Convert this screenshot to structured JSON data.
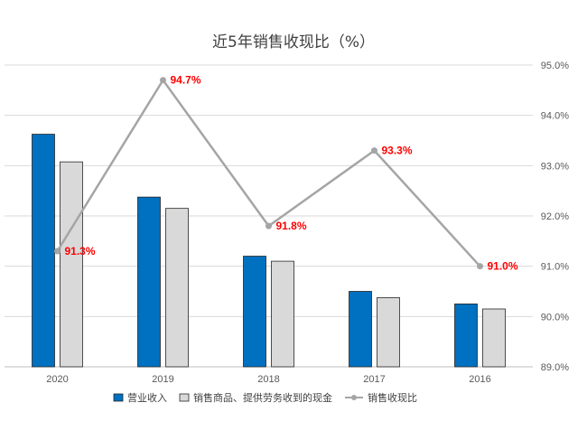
{
  "chart_data": {
    "type": "bar",
    "title": "近5年销售收现比（%）",
    "categories": [
      "2020",
      "2019",
      "2018",
      "2017",
      "2016"
    ],
    "series": [
      {
        "name": "营业收入",
        "kind": "bar",
        "axis": "left",
        "color": "#0070C0",
        "values": [
          18.5,
          13.5,
          8.8,
          6.0,
          5.0
        ]
      },
      {
        "name": "销售商品、提供劳务收到的现金",
        "kind": "bar",
        "axis": "left",
        "color": "#D9D9D9",
        "values": [
          16.3,
          12.6,
          8.4,
          5.5,
          4.6
        ]
      },
      {
        "name": "销售收现比",
        "kind": "line",
        "axis": "right",
        "color": "#A5A5A5",
        "values": [
          91.3,
          94.7,
          91.8,
          93.3,
          91.0
        ],
        "labels": [
          "91.3%",
          "94.7%",
          "91.8%",
          "93.3%",
          "91.0%"
        ]
      }
    ],
    "right_axis": {
      "min": 89.0,
      "max": 95.0,
      "ticks": [
        "89.0%",
        "90.0%",
        "91.0%",
        "92.0%",
        "93.0%",
        "94.0%",
        "95.0%"
      ]
    },
    "left_axis": {
      "min": 0,
      "max": 24
    },
    "grid": true,
    "legend_position": "bottom"
  }
}
